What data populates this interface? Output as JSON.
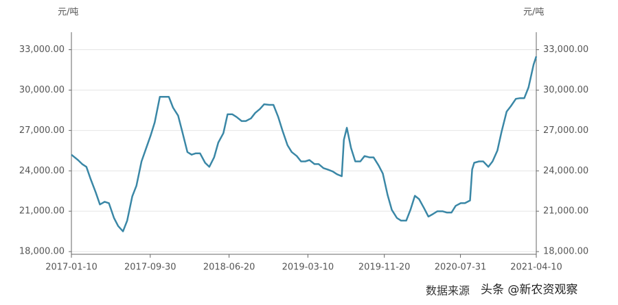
{
  "chart_data": {
    "type": "line",
    "y_label": "元/吨",
    "y2_label": "元/吨",
    "source": "数据来源",
    "watermark": "头条 @新农资观察",
    "x": [
      "2017-01-10",
      "2017-02-01",
      "2017-02-15",
      "2017-03-01",
      "2017-03-15",
      "2017-04-01",
      "2017-04-15",
      "2017-05-01",
      "2017-05-15",
      "2017-06-01",
      "2017-06-15",
      "2017-07-01",
      "2017-07-15",
      "2017-08-01",
      "2017-08-15",
      "2017-09-01",
      "2017-09-15",
      "2017-10-01",
      "2017-10-15",
      "2017-11-01",
      "2017-11-15",
      "2017-12-01",
      "2017-12-15",
      "2018-01-01",
      "2018-01-15",
      "2018-02-01",
      "2018-02-15",
      "2018-03-01",
      "2018-03-15",
      "2018-04-01",
      "2018-04-15",
      "2018-05-01",
      "2018-05-15",
      "2018-06-01",
      "2018-06-15",
      "2018-07-01",
      "2018-07-15",
      "2018-08-01",
      "2018-08-15",
      "2018-09-01",
      "2018-09-15",
      "2018-10-01",
      "2018-10-15",
      "2018-11-01",
      "2018-11-15",
      "2018-12-01",
      "2018-12-15",
      "2019-01-01",
      "2019-01-15",
      "2019-02-01",
      "2019-02-15",
      "2019-03-01",
      "2019-03-15",
      "2019-04-01",
      "2019-04-15",
      "2019-05-01",
      "2019-05-15",
      "2019-06-01",
      "2019-06-15",
      "2019-07-01",
      "2019-07-08",
      "2019-07-18",
      "2019-08-01",
      "2019-08-15",
      "2019-09-01",
      "2019-09-15",
      "2019-10-01",
      "2019-10-15",
      "2019-11-01",
      "2019-11-15",
      "2019-12-01",
      "2019-12-15",
      "2020-01-01",
      "2020-01-15",
      "2020-02-01",
      "2020-02-15",
      "2020-03-01",
      "2020-03-15",
      "2020-04-01",
      "2020-04-15",
      "2020-05-01",
      "2020-05-15",
      "2020-06-01",
      "2020-06-15",
      "2020-07-01",
      "2020-07-15",
      "2020-08-01",
      "2020-08-15",
      "2020-09-01",
      "2020-09-08",
      "2020-09-15",
      "2020-10-01",
      "2020-10-15",
      "2020-11-01",
      "2020-11-15",
      "2020-12-01",
      "2020-12-15",
      "2021-01-01",
      "2021-01-15",
      "2021-02-01",
      "2021-02-15",
      "2021-03-01",
      "2021-03-15",
      "2021-04-01",
      "2021-04-10"
    ],
    "series": [
      {
        "color": "#3a87a6",
        "values": [
          25200,
          24800,
          24500,
          24300,
          23400,
          22400,
          21500,
          21700,
          21600,
          20500,
          19900,
          19500,
          20300,
          22100,
          22900,
          24700,
          25600,
          26600,
          27600,
          29500,
          29500,
          29500,
          28700,
          28100,
          26900,
          25400,
          25200,
          25300,
          25300,
          24600,
          24300,
          25000,
          26100,
          26800,
          28200,
          28200,
          28000,
          27700,
          27700,
          27900,
          28300,
          28600,
          28950,
          28900,
          28900,
          28000,
          27000,
          25900,
          25400,
          25100,
          24700,
          24700,
          24800,
          24500,
          24500,
          24200,
          24100,
          23950,
          23750,
          23600,
          26300,
          27200,
          25700,
          24700,
          24700,
          25100,
          25000,
          25000,
          24400,
          23800,
          22200,
          21100,
          20500,
          20300,
          20300,
          21100,
          22150,
          21900,
          21200,
          20600,
          20800,
          21000,
          21000,
          20900,
          20900,
          21400,
          21600,
          21600,
          21800,
          24100,
          24600,
          24700,
          24700,
          24300,
          24700,
          25500,
          26900,
          28400,
          28800,
          29350,
          29400,
          29400,
          30200,
          31900,
          32500
        ]
      }
    ],
    "xlim": [
      "2017-01-10",
      "2021-04-10"
    ],
    "xticks": [
      "2017-01-10",
      "2017-09-30",
      "2018-06-20",
      "2019-03-10",
      "2019-11-20",
      "2020-07-31",
      "2021-04-10"
    ],
    "ylim": [
      17800,
      34300
    ],
    "yticks": [
      {
        "value": 18000,
        "label": "18,000.00"
      },
      {
        "value": 21000,
        "label": "21,000.00"
      },
      {
        "value": 24000,
        "label": "24,000.00"
      },
      {
        "value": 27000,
        "label": "27,000.00"
      },
      {
        "value": 30000,
        "label": "30,000.00"
      },
      {
        "value": 33000,
        "label": "33,000.00"
      }
    ],
    "y2lim": [
      17800,
      34300
    ],
    "y2ticks": [
      {
        "value": 18000,
        "label": "18,000.00"
      },
      {
        "value": 21000,
        "label": "21,000.00"
      },
      {
        "value": 24000,
        "label": "24,000.00"
      },
      {
        "value": 27000,
        "label": "27,000.00"
      },
      {
        "value": 30000,
        "label": "30,000.00"
      },
      {
        "value": 33000,
        "label": "33,000.00"
      }
    ],
    "grid": true
  }
}
